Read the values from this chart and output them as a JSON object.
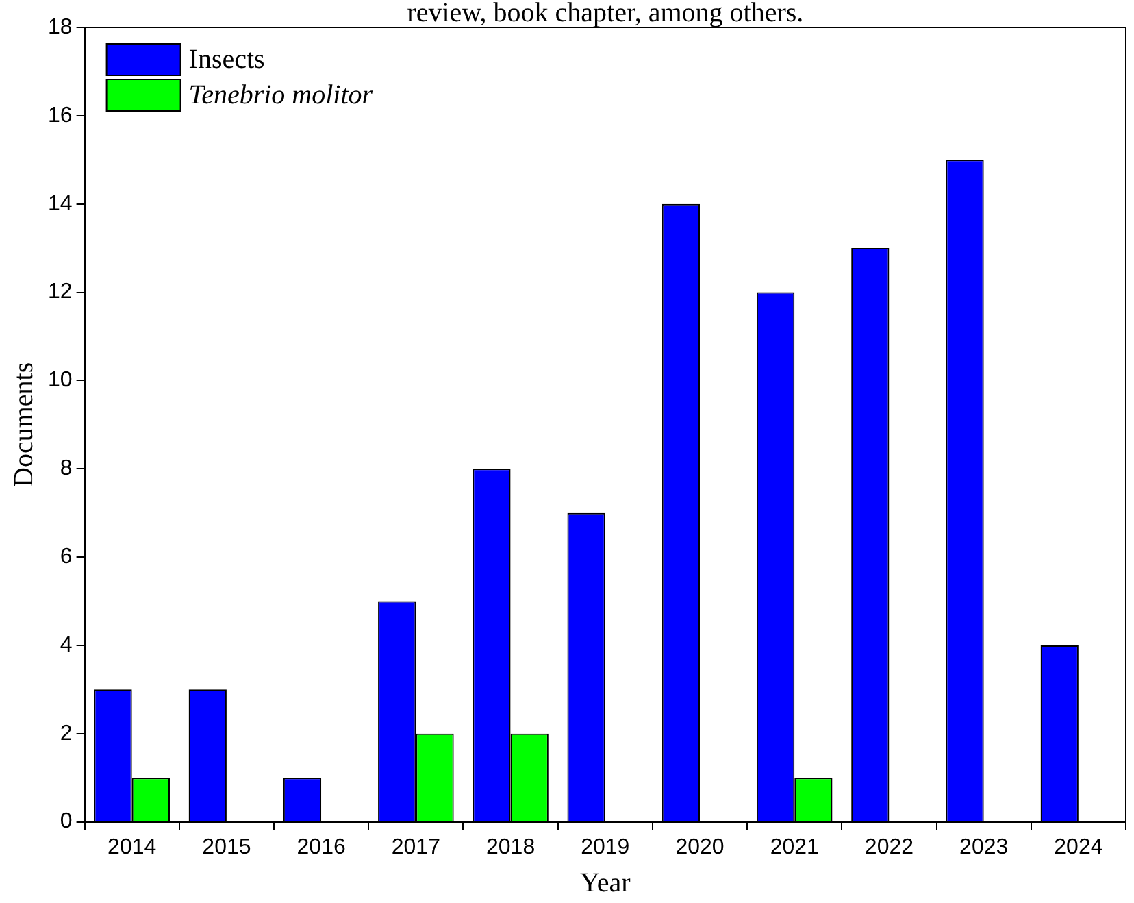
{
  "chart_data": {
    "type": "bar",
    "xlabel": "Year",
    "ylabel": "Documents",
    "annotations": [
      "review, book chapter, among others."
    ],
    "categories": [
      "2014",
      "2015",
      "2016",
      "2017",
      "2018",
      "2019",
      "2020",
      "2021",
      "2022",
      "2023",
      "2024"
    ],
    "series": [
      {
        "name": "Insects",
        "color": "#0000ff",
        "values": [
          3,
          3,
          1,
          5,
          8,
          7,
          14,
          12,
          13,
          15,
          4
        ]
      },
      {
        "name": "Tenebrio molitor",
        "color": "#00ff00",
        "values": [
          1,
          0,
          0,
          2,
          2,
          0,
          0,
          1,
          0,
          0,
          0
        ]
      }
    ],
    "ylim": [
      0,
      18
    ],
    "yticks": [
      0,
      2,
      4,
      6,
      8,
      10,
      12,
      14,
      16,
      18
    ],
    "legend": "top left"
  }
}
